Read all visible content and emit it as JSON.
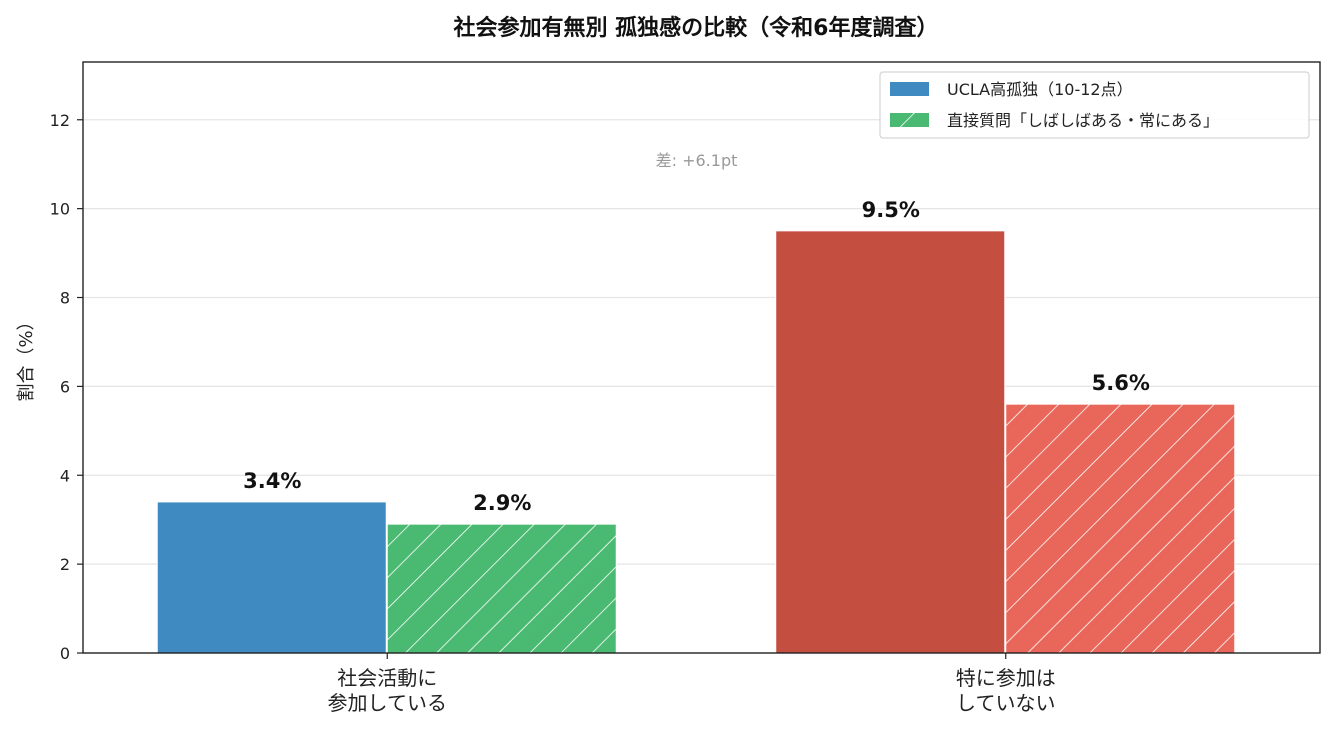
{
  "chart_data": {
    "type": "bar",
    "title": "社会参加有無別 孤独感の比較（令和6年度調査）",
    "ylabel": "割合（%）",
    "xlabel": "",
    "ylim": [
      0,
      13.3
    ],
    "yticks": [
      0,
      2,
      4,
      6,
      8,
      10,
      12
    ],
    "grid": true,
    "legend_position": "top-right",
    "categories": [
      "社会活動に\n参加している",
      "特に参加は\nしていない"
    ],
    "series": [
      {
        "name": "UCLA高孤独（10-12点）",
        "values": [
          3.4,
          9.5
        ],
        "labels": [
          "3.4%",
          "9.5%"
        ],
        "pattern": "solid",
        "colors": [
          "#3f8bc1",
          "#c44e3f"
        ],
        "legend_color": "#3f8bc1"
      },
      {
        "name": "直接質問「しばしばある・常にある」",
        "values": [
          2.9,
          5.6
        ],
        "labels": [
          "2.9%",
          "5.6%"
        ],
        "pattern": "hatched",
        "colors": [
          "#4aba72",
          "#e8675a"
        ],
        "legend_color": "#4aba72"
      }
    ],
    "annotations": [
      {
        "text": "差: +6.1pt",
        "x_category": 1,
        "y": 11.1
      }
    ]
  }
}
